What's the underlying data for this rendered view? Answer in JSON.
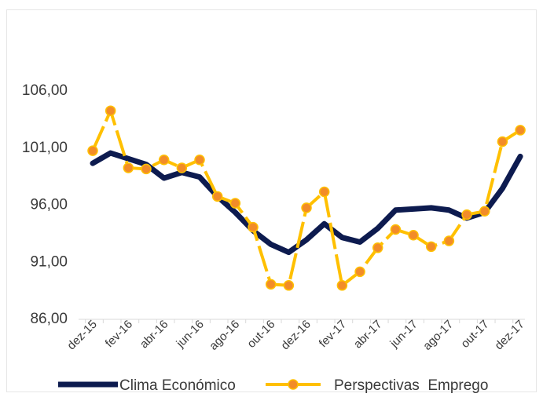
{
  "chart_data": {
    "type": "line",
    "title": "",
    "xlabel": "",
    "ylabel": "",
    "ylim": [
      86,
      106
    ],
    "yticks": [
      "86,00",
      "91,00",
      "96,00",
      "101,00",
      "106,00"
    ],
    "ytick_values": [
      86,
      91,
      96,
      101,
      106
    ],
    "x": [
      "dez-15",
      "jan-16",
      "fev-16",
      "mar-16",
      "abr-16",
      "mai-16",
      "jun-16",
      "jul-16",
      "ago-16",
      "set-16",
      "out-16",
      "nov-16",
      "dez-16",
      "jan-17",
      "fev-17",
      "mar-17",
      "abr-17",
      "mai-17",
      "jun-17",
      "jul-17",
      "ago-17",
      "set-17",
      "out-17",
      "nov-17",
      "dez-17"
    ],
    "xtick_labels": [
      "dez-15",
      "fev-16",
      "abr-16",
      "jun-16",
      "ago-16",
      "out-16",
      "dez-16",
      "fev-17",
      "abr-17",
      "jun-17",
      "ago-17",
      "out-17",
      "dez-17"
    ],
    "grid": false,
    "legend_position": "bottom",
    "series": [
      {
        "name": "Clima Económico",
        "color": "#0d1b4f",
        "style": "solid",
        "values": [
          99.6,
          100.5,
          100.0,
          99.5,
          98.3,
          98.8,
          98.4,
          96.7,
          95.3,
          93.7,
          92.5,
          91.8,
          92.9,
          94.3,
          93.1,
          92.7,
          93.9,
          95.5,
          95.6,
          95.7,
          95.5,
          94.8,
          95.3,
          97.4,
          100.2
        ]
      },
      {
        "name": "Perspectivas  Emprego",
        "color": "#ffc000",
        "marker_color": "#f28c28",
        "style": "dashed",
        "values": [
          100.7,
          104.2,
          99.2,
          99.1,
          99.9,
          99.2,
          99.9,
          96.7,
          96.1,
          94.0,
          89.0,
          88.9,
          95.7,
          97.1,
          88.9,
          90.1,
          92.2,
          93.8,
          93.3,
          92.3,
          92.8,
          95.1,
          95.4,
          101.5,
          102.5
        ]
      }
    ]
  }
}
